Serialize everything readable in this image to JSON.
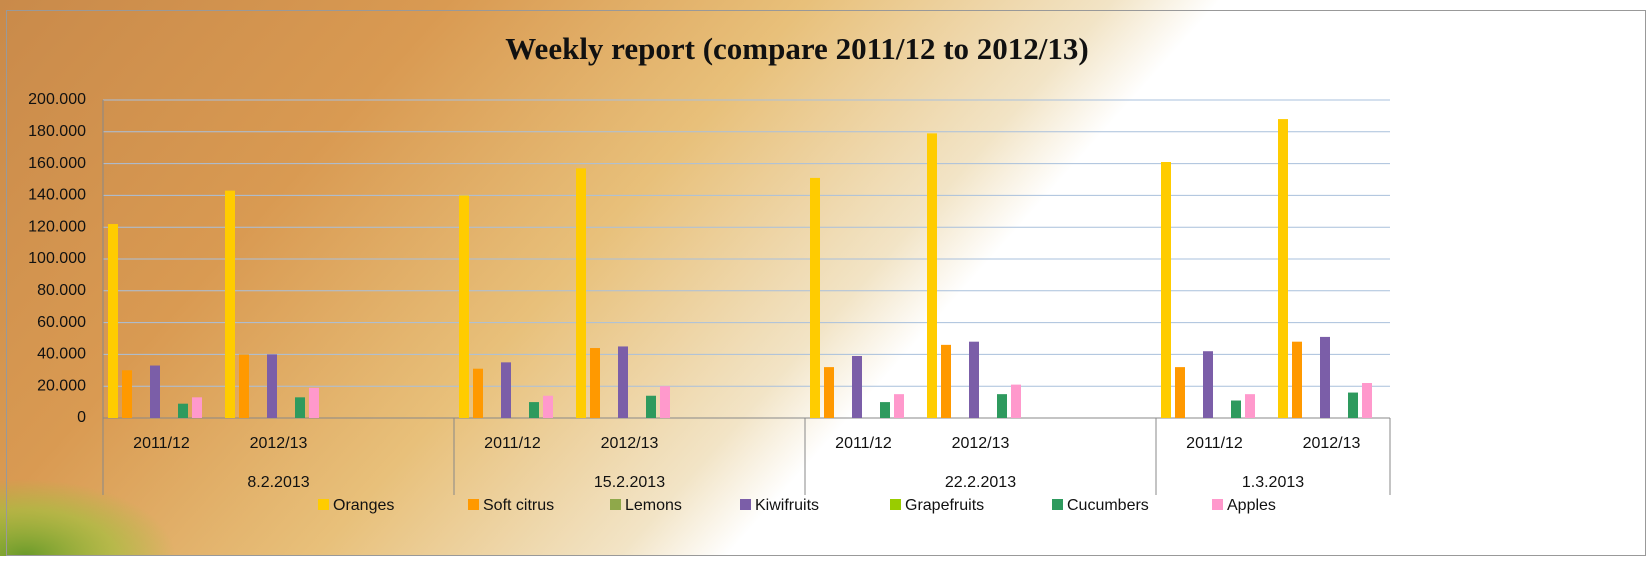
{
  "chart_data": {
    "type": "bar",
    "title": "Weekly report (compare 2011/12 to 2012/13)",
    "groups": [
      {
        "label": "8.2.2013",
        "categories": [
          "2011/12",
          "2012/13",
          null
        ]
      },
      {
        "label": "15.2.2013",
        "categories": [
          "2011/12",
          "2012/13",
          null
        ]
      },
      {
        "label": "22.2.2013",
        "categories": [
          "2011/12",
          "2012/13",
          null
        ]
      },
      {
        "label": "1.3.2013",
        "categories": [
          "2011/12",
          "2012/13"
        ]
      }
    ],
    "series": [
      {
        "name": "Oranges",
        "color": "#ffcc00",
        "values": [
          122000,
          143000,
          null,
          140000,
          157000,
          null,
          151000,
          179000,
          null,
          161000,
          188000
        ]
      },
      {
        "name": "Soft citrus",
        "color": "#ff9900",
        "values": [
          30000,
          40000,
          null,
          31000,
          44000,
          null,
          32000,
          46000,
          null,
          32000,
          48000
        ]
      },
      {
        "name": "Lemons",
        "color": "#8fa84a",
        "values": [
          0,
          0,
          null,
          0,
          0,
          null,
          0,
          0,
          null,
          0,
          0
        ]
      },
      {
        "name": "Kiwifruits",
        "color": "#7b5ea8",
        "values": [
          33000,
          40000,
          null,
          35000,
          45000,
          null,
          39000,
          48000,
          null,
          42000,
          51000
        ]
      },
      {
        "name": "Grapefruits",
        "color": "#99cc00",
        "values": [
          0,
          0,
          null,
          0,
          0,
          null,
          0,
          0,
          null,
          0,
          0
        ]
      },
      {
        "name": "Cucumbers",
        "color": "#2e9a5e",
        "values": [
          9000,
          13000,
          null,
          10000,
          14000,
          null,
          10000,
          15000,
          null,
          11000,
          16000
        ]
      },
      {
        "name": "Apples",
        "color": "#ff99cc",
        "values": [
          13000,
          19000,
          null,
          14000,
          20000,
          null,
          15000,
          21000,
          null,
          15000,
          22000
        ]
      }
    ],
    "ylim": [
      0,
      200000
    ],
    "yticks": [
      0,
      {
        "value": 20000,
        "label": "20.000"
      },
      {
        "value": 40000,
        "label": "40.000"
      },
      {
        "value": 60000,
        "label": "60.000"
      },
      {
        "value": 80000,
        "label": "80.000"
      },
      {
        "value": 100000,
        "label": "100.000"
      },
      {
        "value": 120000,
        "label": "120.000"
      },
      {
        "value": 140000,
        "label": "140.000"
      },
      {
        "value": 160000,
        "label": "160.000"
      },
      {
        "value": 180000,
        "label": "180.000"
      },
      {
        "value": 200000,
        "label": "200.000"
      }
    ],
    "grid": true,
    "legend": "bottom"
  }
}
